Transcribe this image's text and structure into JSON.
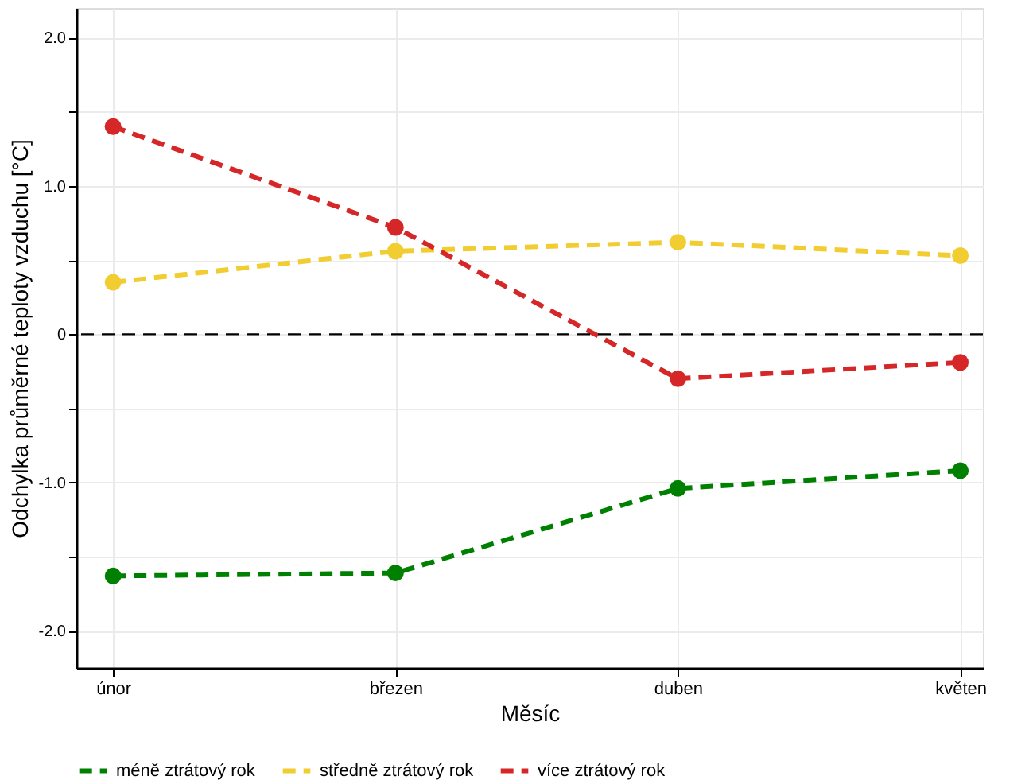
{
  "chart_data": {
    "type": "line",
    "xlabel": "Měsíc",
    "ylabel": "Odchylka průměrné teploty vzduchu [°C]",
    "categories": [
      "únor",
      "březen",
      "duben",
      "květen"
    ],
    "series": [
      {
        "name": "méně ztrátový rok",
        "color": "#008000",
        "values": [
          -1.63,
          -1.61,
          -1.04,
          -0.92
        ]
      },
      {
        "name": "středně ztrátový rok",
        "color": "#f2cd32",
        "values": [
          0.35,
          0.56,
          0.62,
          0.53
        ]
      },
      {
        "name": "více ztrátový rok",
        "color": "#d62728",
        "values": [
          1.4,
          0.72,
          -0.3,
          -0.19
        ]
      }
    ],
    "ylim": [
      -2.25,
      2.2
    ],
    "yticks": [
      {
        "value": -2,
        "label": "-2.0"
      },
      {
        "value": -1.5,
        "label": null
      },
      {
        "value": -1,
        "label": "-1.0"
      },
      {
        "value": -0.5,
        "label": null
      },
      0,
      {
        "value": 0.5,
        "label": null
      },
      {
        "value": 1,
        "label": "1.0"
      },
      {
        "value": 1.5,
        "label": null
      },
      {
        "value": 2,
        "label": "2.0"
      }
    ],
    "ref_lines": [
      {
        "axis": "y",
        "value": 0,
        "color": "#000000",
        "line_style": "dashed"
      }
    ],
    "grid": true,
    "legend": "bottom",
    "marker": "circle",
    "line_style": "dashed"
  }
}
